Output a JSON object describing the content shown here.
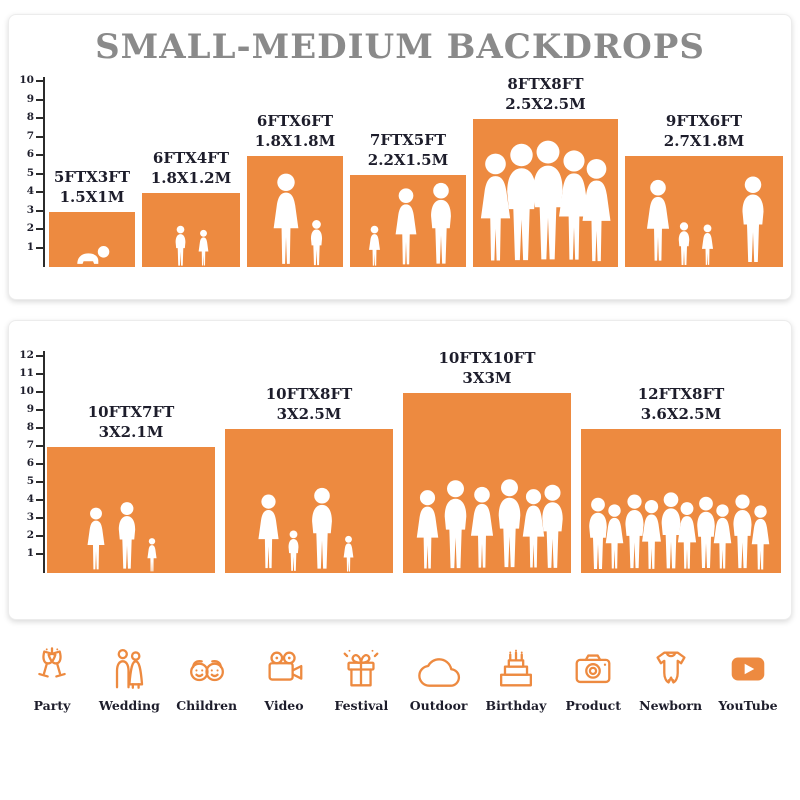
{
  "title": "SMALL-MEDIUM BACKDROPS",
  "colors": {
    "orange": "#ED8A40",
    "title": "#8a8a8a",
    "label": "#1d1d2b"
  },
  "top_chart": {
    "ruler_max": 10,
    "items": [
      {
        "size_ft": "5FTX3FT",
        "size_m": "1.5X1M",
        "people": "crawling-baby"
      },
      {
        "size_ft": "6FTX4FT",
        "size_m": "1.8X1.2M",
        "people": "two-children"
      },
      {
        "size_ft": "6FTX6FT",
        "size_m": "1.8X1.8M",
        "people": "mother-with-children"
      },
      {
        "size_ft": "7FTX5FT",
        "size_m": "2.2X1.5M",
        "people": "family-of-three"
      },
      {
        "size_ft": "8FTX8FT",
        "size_m": "2.5X2.5M",
        "people": "group-of-five-adults"
      },
      {
        "size_ft": "9FTX6FT",
        "size_m": "2.7X1.8M",
        "people": "family-with-children"
      }
    ]
  },
  "bottom_chart": {
    "ruler_max": 12,
    "items": [
      {
        "size_ft": "10FTX7FT",
        "size_m": "3X2.1M",
        "people": "couple-with-child"
      },
      {
        "size_ft": "10FTX8FT",
        "size_m": "3X2.5M",
        "people": "family-walking"
      },
      {
        "size_ft": "10FTX10FT",
        "size_m": "3X3M",
        "people": "group-of-six"
      },
      {
        "size_ft": "12FTX8FT",
        "size_m": "3.6X2.5M",
        "people": "large-crowd"
      }
    ]
  },
  "categories": [
    {
      "label": "Party",
      "icon": "party-glasses-icon"
    },
    {
      "label": "Wedding",
      "icon": "wedding-couple-icon"
    },
    {
      "label": "Children",
      "icon": "children-faces-icon"
    },
    {
      "label": "Video",
      "icon": "video-camera-icon"
    },
    {
      "label": "Festival",
      "icon": "gift-icon"
    },
    {
      "label": "Outdoor",
      "icon": "cloud-icon"
    },
    {
      "label": "Birthday",
      "icon": "birthday-cake-icon"
    },
    {
      "label": "Product",
      "icon": "photo-camera-icon"
    },
    {
      "label": "Newborn",
      "icon": "baby-onesie-icon"
    },
    {
      "label": "YouTube",
      "icon": "youtube-play-icon"
    }
  ],
  "chart_data": [
    {
      "type": "bar",
      "title": "SMALL-MEDIUM BACKDROPS (top panel)",
      "categories": [
        "5FTX3FT",
        "6FTX4FT",
        "6FTX6FT",
        "7FTX5FT",
        "8FTX8FT",
        "9FTX6FT"
      ],
      "series": [
        {
          "name": "width_ft",
          "values": [
            5,
            6,
            6,
            7,
            8,
            9
          ]
        },
        {
          "name": "height_ft",
          "values": [
            3,
            4,
            6,
            5,
            8,
            6
          ]
        }
      ],
      "metric_labels": [
        "1.5X1M",
        "1.8X1.2M",
        "1.8X1.8M",
        "2.2X1.5M",
        "2.5X2.5M",
        "2.7X1.8M"
      ],
      "ylabel": "feet",
      "ylim": [
        0,
        10
      ],
      "grid": false,
      "legend": "none"
    },
    {
      "type": "bar",
      "title": "SMALL-MEDIUM BACKDROPS (bottom panel)",
      "categories": [
        "10FTX7FT",
        "10FTX8FT",
        "10FTX10FT",
        "12FTX8FT"
      ],
      "series": [
        {
          "name": "width_ft",
          "values": [
            10,
            10,
            10,
            12
          ]
        },
        {
          "name": "height_ft",
          "values": [
            7,
            8,
            10,
            8
          ]
        }
      ],
      "metric_labels": [
        "3X2.1M",
        "3X2.5M",
        "3X3M",
        "3.6X2.5M"
      ],
      "ylabel": "feet",
      "ylim": [
        0,
        12
      ],
      "grid": false,
      "legend": "none"
    }
  ]
}
